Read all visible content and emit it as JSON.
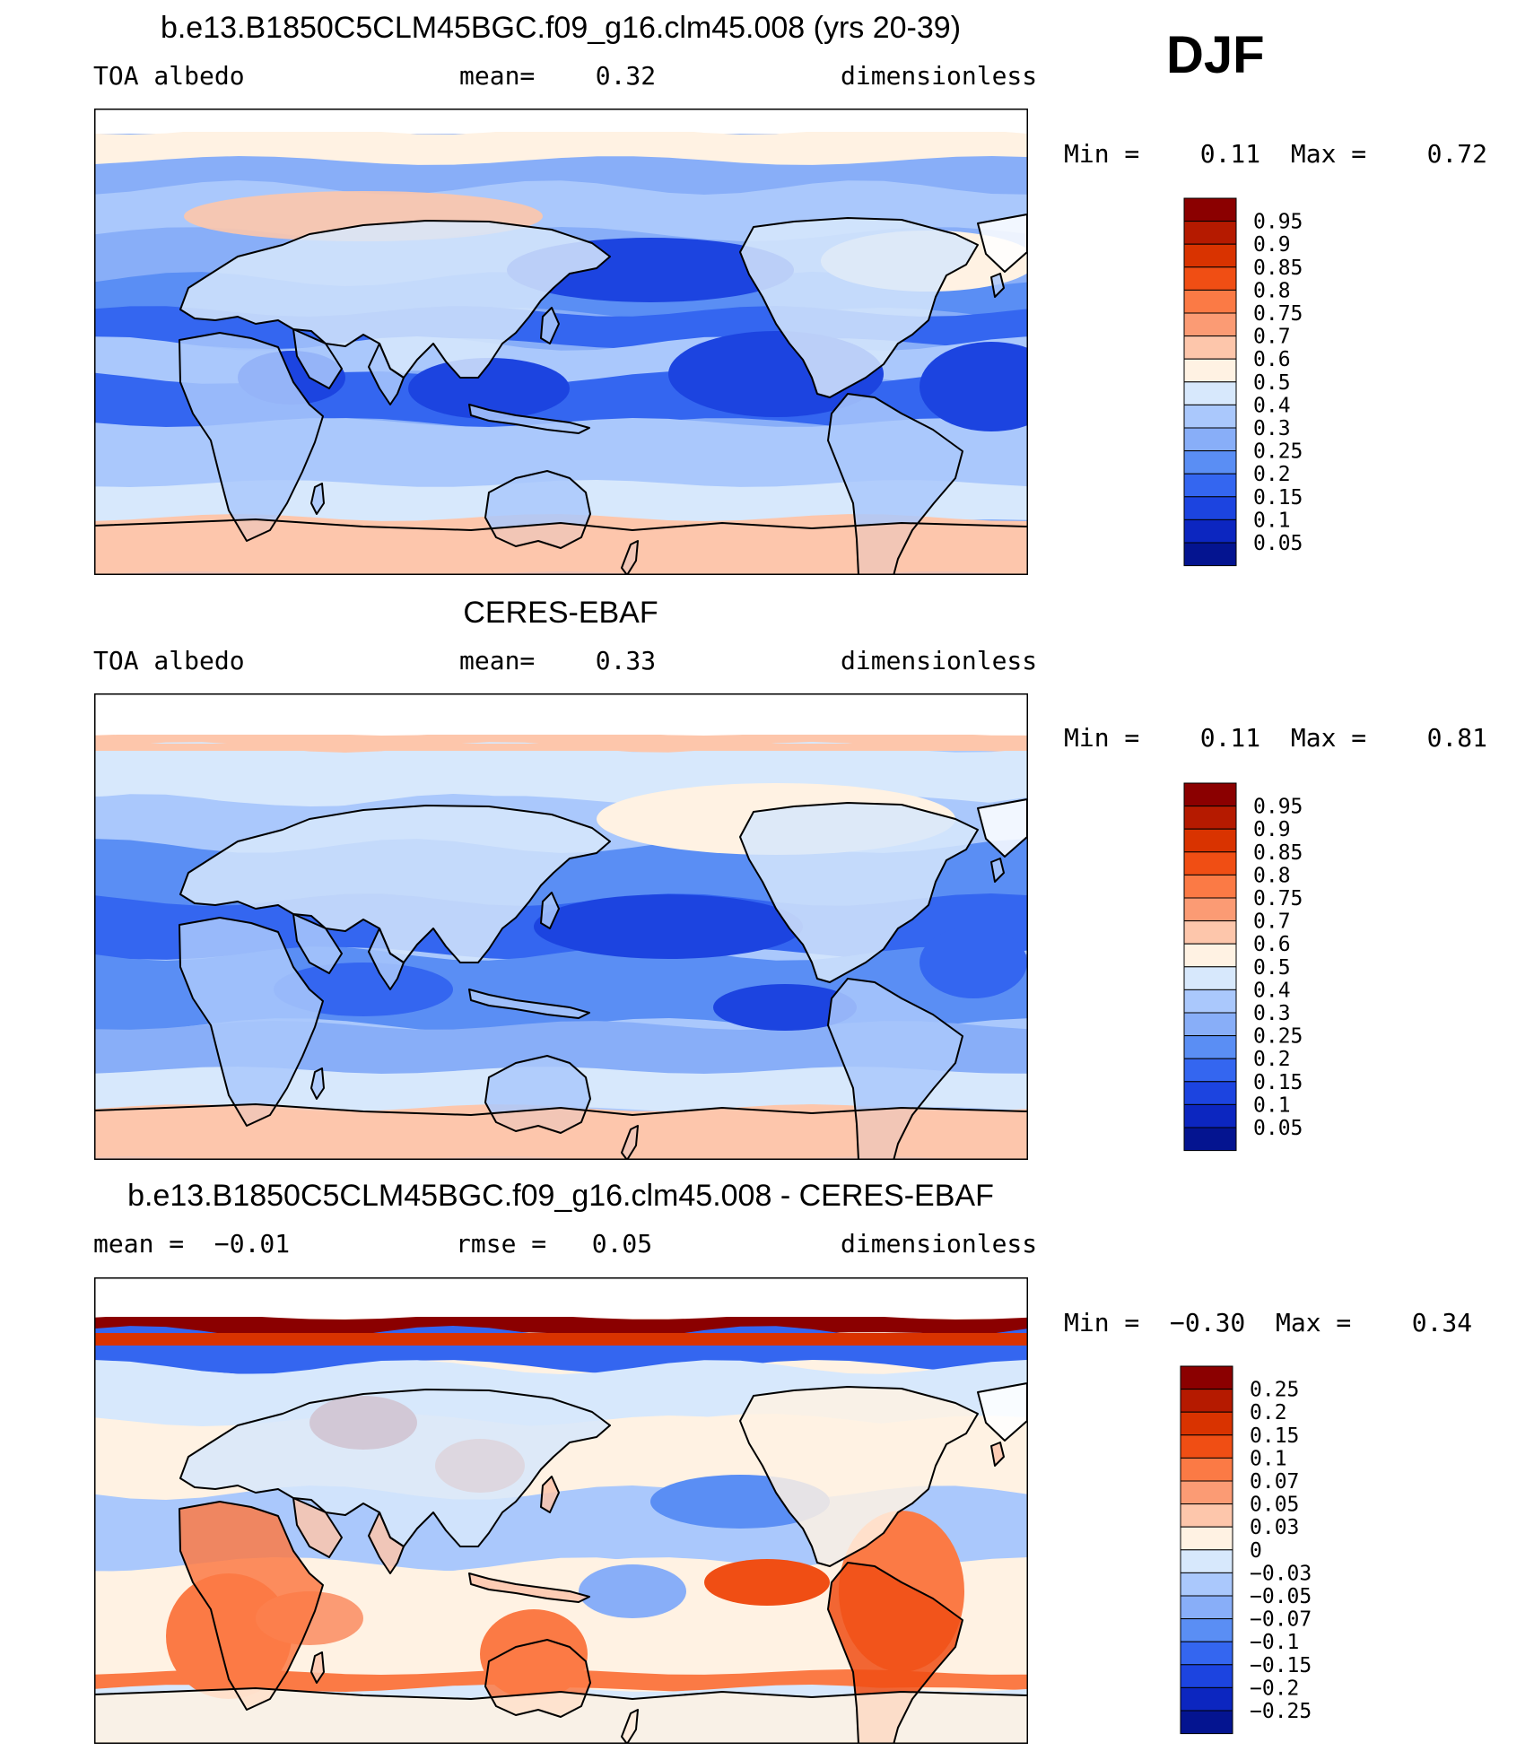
{
  "season": "DJF",
  "colors": {
    "land_line": "#000000",
    "ice": "#ffffff",
    "ocean_base": "#aac8fc"
  },
  "panels": [
    {
      "id": "model",
      "title": "b.e13.B1850C5CLM45BGC.f09_g16.clm45.008 (yrs 20-39)",
      "left_text": "TOA albedo",
      "center_text": "mean=    0.32",
      "right_text": "dimensionless",
      "min_max_text": "Min =    0.11  Max =    0.72",
      "colorbar": {
        "labels": [
          "0.95",
          "0.9",
          "0.85",
          "0.8",
          "0.75",
          "0.7",
          "0.6",
          "0.5",
          "0.4",
          "0.3",
          "0.25",
          "0.2",
          "0.15",
          "0.1",
          "0.05"
        ],
        "colors": [
          "#8b0000",
          "#b51a00",
          "#d93300",
          "#f04e14",
          "#fb7a45",
          "#fb9b74",
          "#fdc6ab",
          "#fff2e3",
          "#d7e8fc",
          "#aac8fc",
          "#88aef8",
          "#5a8ef4",
          "#3466f0",
          "#1c44e0",
          "#0c26c0",
          "#041490"
        ]
      }
    },
    {
      "id": "obs",
      "title": "CERES-EBAF",
      "left_text": "TOA albedo",
      "center_text": "mean=    0.33",
      "right_text": "dimensionless",
      "min_max_text": "Min =    0.11  Max =    0.81",
      "colorbar": {
        "labels": [
          "0.95",
          "0.9",
          "0.85",
          "0.8",
          "0.75",
          "0.7",
          "0.6",
          "0.5",
          "0.4",
          "0.3",
          "0.25",
          "0.2",
          "0.15",
          "0.1",
          "0.05"
        ],
        "colors": [
          "#8b0000",
          "#b51a00",
          "#d93300",
          "#f04e14",
          "#fb7a45",
          "#fb9b74",
          "#fdc6ab",
          "#fff2e3",
          "#d7e8fc",
          "#aac8fc",
          "#88aef8",
          "#5a8ef4",
          "#3466f0",
          "#1c44e0",
          "#0c26c0",
          "#041490"
        ]
      }
    },
    {
      "id": "diff",
      "title": "b.e13.B1850C5CLM45BGC.f09_g16.clm45.008 - CERES-EBAF",
      "left_text": "mean =  −0.01",
      "center_text": "rmse =   0.05",
      "right_text": "dimensionless",
      "min_max_text": "Min =  −0.30  Max =    0.34",
      "colorbar": {
        "labels": [
          "0.25",
          "0.2",
          "0.15",
          "0.1",
          "0.07",
          "0.05",
          "0.03",
          "0",
          "−0.03",
          "−0.05",
          "−0.07",
          "−0.1",
          "−0.15",
          "−0.2",
          "−0.25"
        ],
        "colors": [
          "#8b0000",
          "#b51a00",
          "#d93300",
          "#f04e14",
          "#fb7a45",
          "#fb9b74",
          "#fdc6ab",
          "#fff2e3",
          "#d7e8fc",
          "#aac8fc",
          "#88aef8",
          "#5a8ef4",
          "#3466f0",
          "#1c44e0",
          "#0c26c0",
          "#041490"
        ]
      }
    }
  ]
}
